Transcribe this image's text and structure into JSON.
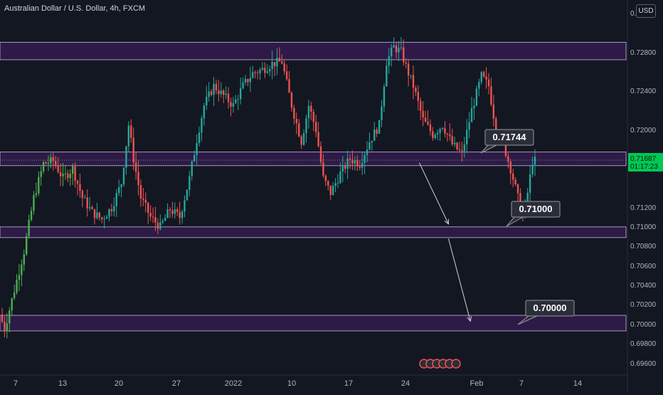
{
  "title": "Australian Dollar / U.S. Dollar, 4h, FXCM",
  "currency": "USD",
  "colors": {
    "background": "#131722",
    "up": "#26a69a",
    "up_bright": "#4caf50",
    "down": "#ef5350",
    "zone_fill": "#311b4a",
    "zone_stroke": "#c9b6e8",
    "axis_text": "#b2b5be",
    "price_line": "#4caf50",
    "price_badge_bg": "#00c853",
    "label_bg": "#2a2e39"
  },
  "chart_data": {
    "type": "candlestick",
    "symbol": "AUDUSD",
    "timeframe": "4h",
    "source": "FXCM",
    "y_ticks": [
      "0.72880",
      "0.72800",
      "0.72400",
      "0.72000",
      "0.71600",
      "0.71200",
      "0.71000",
      "0.70800",
      "0.70600",
      "0.70400",
      "0.70200",
      "0.70000",
      "0.69800",
      "0.69600"
    ],
    "x_ticks": [
      "7",
      "13",
      "20",
      "27",
      "2022",
      "10",
      "17",
      "24",
      "Feb",
      "7",
      "14"
    ],
    "ylim": [
      0.6955,
      0.7302
    ],
    "candle_count": 170,
    "current_price": {
      "value": "0.71687",
      "countdown": "01:17:23"
    },
    "zones": [
      {
        "name": "resistance-high",
        "low": 0.7272,
        "high": 0.729
      },
      {
        "name": "resistance-mid",
        "low": 0.7163,
        "high": 0.7177
      },
      {
        "name": "support-1",
        "low": 0.7089,
        "high": 0.71
      },
      {
        "name": "support-2",
        "low": 0.6993,
        "high": 0.7009
      }
    ],
    "labels": [
      {
        "text": "0.71744",
        "value": 0.71744
      },
      {
        "text": "0.71000",
        "value": 0.71
      },
      {
        "text": "0.70000",
        "value": 0.7
      }
    ],
    "projection_arrows": [
      {
        "from": {
          "candle": 170,
          "price": 0.7166
        },
        "to": {
          "candle": 182,
          "price": 0.7103
        }
      },
      {
        "from": {
          "candle": 182,
          "price": 0.7088
        },
        "to": {
          "candle": 191,
          "price": 0.7003
        }
      }
    ],
    "price_waypoints": [
      [
        0,
        0.701
      ],
      [
        2,
        0.6995
      ],
      [
        5,
        0.7025
      ],
      [
        10,
        0.7075
      ],
      [
        14,
        0.713
      ],
      [
        18,
        0.7165
      ],
      [
        22,
        0.7168
      ],
      [
        26,
        0.715
      ],
      [
        30,
        0.716
      ],
      [
        34,
        0.713
      ],
      [
        38,
        0.7115
      ],
      [
        42,
        0.7108
      ],
      [
        46,
        0.712
      ],
      [
        50,
        0.7145
      ],
      [
        53,
        0.7205
      ],
      [
        55,
        0.717
      ],
      [
        58,
        0.713
      ],
      [
        62,
        0.711
      ],
      [
        66,
        0.71
      ],
      [
        70,
        0.7118
      ],
      [
        74,
        0.711
      ],
      [
        78,
        0.715
      ],
      [
        81,
        0.719
      ],
      [
        84,
        0.7225
      ],
      [
        88,
        0.7245
      ],
      [
        92,
        0.7235
      ],
      [
        96,
        0.7225
      ],
      [
        100,
        0.7245
      ],
      [
        104,
        0.7258
      ],
      [
        108,
        0.7262
      ],
      [
        112,
        0.7268
      ],
      [
        116,
        0.727
      ],
      [
        120,
        0.7225
      ],
      [
        124,
        0.7188
      ],
      [
        127,
        0.7225
      ],
      [
        130,
        0.72
      ],
      [
        133,
        0.715
      ],
      [
        136,
        0.7135
      ],
      [
        140,
        0.7155
      ],
      [
        144,
        0.717
      ],
      [
        148,
        0.7165
      ],
      [
        152,
        0.7188
      ],
      [
        156,
        0.7205
      ],
      [
        159,
        0.727
      ],
      [
        162,
        0.7285
      ],
      [
        165,
        0.728
      ],
      [
        167,
        0.7265
      ],
      [
        170,
        0.7245
      ],
      [
        174,
        0.721
      ],
      [
        178,
        0.7195
      ],
      [
        182,
        0.7205
      ],
      [
        186,
        0.7185
      ],
      [
        190,
        0.7175
      ],
      [
        194,
        0.722
      ],
      [
        198,
        0.7255
      ],
      [
        201,
        0.7245
      ],
      [
        204,
        0.72
      ],
      [
        207,
        0.7185
      ],
      [
        210,
        0.716
      ],
      [
        213,
        0.713
      ],
      [
        215,
        0.711
      ],
      [
        217,
        0.7135
      ],
      [
        219,
        0.7168
      ]
    ]
  }
}
